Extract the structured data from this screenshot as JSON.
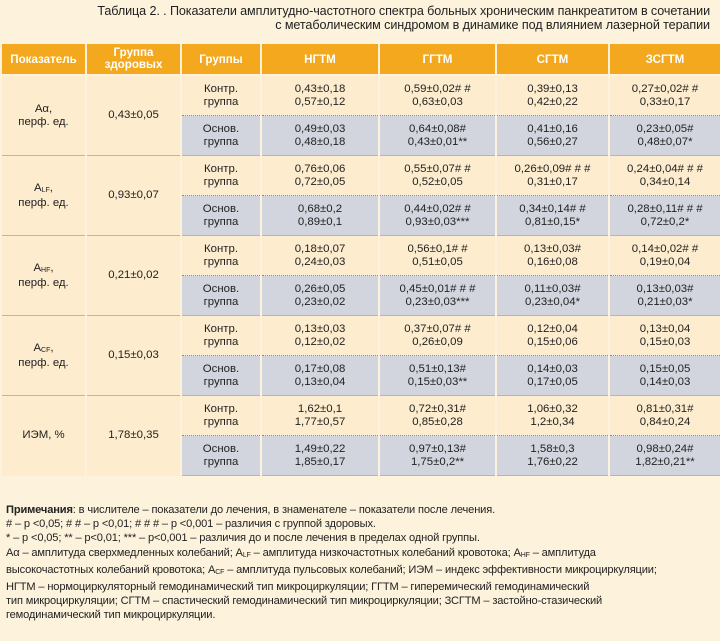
{
  "title_line1": "Таблица 2. . Показатели амплитудно-частотного спектра больных хроническим панкреатитом в сочетании",
  "title_line2": "с метаболическим синдромом в динамике под влиянием лазерной терапии",
  "headers": {
    "indicator": "Показатель",
    "healthy": "Группа здоровых",
    "groups": "Группы",
    "c1": "НГТМ",
    "c2": "ГГТМ",
    "c3": "СГТМ",
    "c4": "ЗСГТМ"
  },
  "group_labels": {
    "ctrl_1": "Контр.",
    "ctrl_2": "группа",
    "main_1": "Основ.",
    "main_2": "группа"
  },
  "rows": [
    {
      "ind_main": "Aα,",
      "ind_sub": "",
      "ind_line2": "перф. ед.",
      "healthy": "0,43±0,05",
      "ctrl": [
        [
          "0,43±0,18",
          "0,57±0,12"
        ],
        [
          "0,59±0,02# #",
          "0,63±0,03"
        ],
        [
          "0,39±0,13",
          "0,42±0,22"
        ],
        [
          "0,27±0,02# #",
          "0,33±0,17"
        ]
      ],
      "main": [
        [
          "0,49±0,03",
          "0,48±0,18"
        ],
        [
          "0,64±0,08#",
          "0,43±0,01**"
        ],
        [
          "0,41±0,16",
          "0,56±0,27"
        ],
        [
          "0,23±0,05#",
          "0,48±0,07*"
        ]
      ]
    },
    {
      "ind_main": "A",
      "ind_sub": "LF",
      "ind_suffix": ",",
      "ind_line2": "перф. ед.",
      "healthy": "0,93±0,07",
      "ctrl": [
        [
          "0,76±0,06",
          "0,72±0,05"
        ],
        [
          "0,55±0,07# #",
          "0,52±0,05"
        ],
        [
          "0,26±0,09# # #",
          "0,31±0,17"
        ],
        [
          "0,24±0,04# # #",
          "0,34±0,14"
        ]
      ],
      "main": [
        [
          "0,68±0,2",
          "0,89±0,1"
        ],
        [
          "0,44±0,02# #",
          "0,93±0,03***"
        ],
        [
          "0,34±0,14# #",
          "0,81±0,15*"
        ],
        [
          "0,28±0,11# # #",
          "0,72±0,2*"
        ]
      ]
    },
    {
      "ind_main": "A",
      "ind_sub": "HF",
      "ind_suffix": ",",
      "ind_line2": "перф. ед.",
      "healthy": "0,21±0,02",
      "ctrl": [
        [
          "0,18±0,07",
          "0,24±0,03"
        ],
        [
          "0,56±0,1# #",
          "0,51±0,05"
        ],
        [
          "0,13±0,03#",
          "0,16±0,08"
        ],
        [
          "0,14±0,02# #",
          "0,19±0,04"
        ]
      ],
      "main": [
        [
          "0,26±0,05",
          "0,23±0,02"
        ],
        [
          "0,45±0,01# # #",
          "0,23±0,03***"
        ],
        [
          "0,11±0,03#",
          "0,23±0,04*"
        ],
        [
          "0,13±0,03#",
          "0,21±0,03*"
        ]
      ]
    },
    {
      "ind_main": "A",
      "ind_sub": "CF",
      "ind_suffix": ",",
      "ind_line2": "перф. ед.",
      "healthy": "0,15±0,03",
      "ctrl": [
        [
          "0,13±0,03",
          "0,12±0,02"
        ],
        [
          "0,37±0,07# #",
          "0,26±0,09"
        ],
        [
          "0,12±0,04",
          "0,15±0,06"
        ],
        [
          "0,13±0,04",
          "0,15±0,03"
        ]
      ],
      "main": [
        [
          "0,17±0,08",
          "0,13±0,04"
        ],
        [
          "0,51±0,13#",
          "0,15±0,03**"
        ],
        [
          "0,14±0,03",
          "0,17±0,05"
        ],
        [
          "0,15±0,05",
          "0,14±0,03"
        ]
      ]
    },
    {
      "ind_main": "ИЭМ, %",
      "ind_sub": "",
      "ind_line2": "",
      "healthy": "1,78±0,35",
      "ctrl": [
        [
          "1,62±0,1",
          "1,77±0,57"
        ],
        [
          "0,72±0,31#",
          "0,85±0,28"
        ],
        [
          "1,06±0,32",
          "1,2±0,34"
        ],
        [
          "0,81±0,31#",
          "0,84±0,24"
        ]
      ],
      "main": [
        [
          "1,49±0,22",
          "1,85±0,17"
        ],
        [
          "0,97±0,13#",
          "1,75±0,2**"
        ],
        [
          "1,58±0,3",
          "1,76±0,22"
        ],
        [
          "0,98±0,24#",
          "1,82±0,21**"
        ]
      ]
    }
  ],
  "notes": {
    "label": "Примечания",
    "line1_rest": ": в числителе – показатели до лечения, в знаменателе – показатели после лечения.",
    "line2": "# – p <0,05; # # – p <0,01; # # # – p <0,001 – различия с группой здоровых.",
    "line3": "* – p <0,05; ** – p<0,01; *** – p<0,001 – различия до и после лечения в пределах одной группы.",
    "l4a": "Aα – амплитуда сверхмедленных колебаний; A",
    "l4s1": "LF",
    "l4b": " – амплитуда низкочастотных колебаний кровотока; A",
    "l4s2": "HF",
    "l4c": " – амплитуда",
    "l5a": "высокочастотных колебаний кровотока; A",
    "l5s": "CF",
    "l5b": " – амплитуда пульсовых колебаний; ИЭМ – индекс эффективности микроциркуляции;",
    "line6": "НГТМ – нормоциркуляторный гемодинамический тип микроциркуляции; ГГТМ – гиперемический гемодинамический",
    "line7": "тип микроциркуляции; СГТМ – спастический гемодинамический тип микроциркуляции; ЗСГТМ – застойно-стазический",
    "line8": "гемодинамический тип микроциркуляции."
  }
}
